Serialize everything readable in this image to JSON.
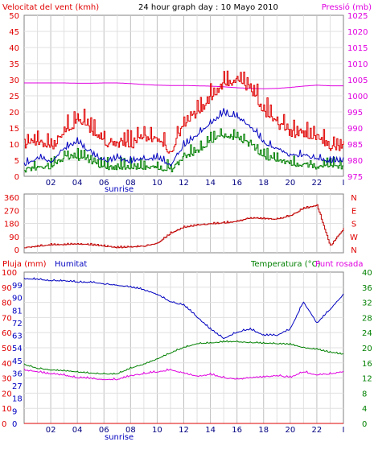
{
  "chart_data": [
    {
      "type": "line",
      "title": "24 hour graph day : 10 Mayo 2010",
      "ylabel_left": "Velocitat del vent (kmh)",
      "ylabel_right": "Pressió (mb)",
      "x_ticks": [
        "02",
        "04",
        "06",
        "08",
        "10",
        "12",
        "14",
        "16",
        "18",
        "20",
        "22",
        "I"
      ],
      "x_annotation": "sunrise",
      "ylim_left": [
        0,
        50
      ],
      "ylim_right": [
        975,
        1025
      ],
      "y_ticks_left": [
        "0",
        "5",
        "10",
        "15",
        "20",
        "25",
        "30",
        "35",
        "40",
        "45",
        "50"
      ],
      "y_ticks_right": [
        "975",
        "980",
        "985",
        "990",
        "995",
        "1000",
        "1005",
        "1010",
        "1015",
        "1020",
        "1025"
      ],
      "grid": true,
      "colors": {
        "gust": "#e00000",
        "avg": "#0000c0",
        "min": "#008000",
        "pressure": "#e000e0"
      },
      "x_hours": [
        0,
        1,
        2,
        3,
        4,
        5,
        6,
        7,
        8,
        9,
        10,
        11,
        12,
        13,
        14,
        15,
        16,
        17,
        18,
        19,
        20,
        21,
        22,
        23,
        24
      ],
      "series": [
        {
          "key": "gust",
          "values": [
            8,
            10,
            7,
            12,
            16,
            13,
            9,
            9,
            8,
            11,
            10,
            6,
            15,
            18,
            23,
            27,
            28,
            26,
            19,
            15,
            12,
            12,
            11,
            8,
            8
          ]
        },
        {
          "key": "avg",
          "values": [
            3,
            5,
            4,
            8,
            10,
            7,
            4,
            5,
            4,
            5,
            5,
            3,
            9,
            12,
            16,
            19,
            18,
            15,
            10,
            8,
            6,
            6,
            5,
            4,
            4
          ]
        },
        {
          "key": "min",
          "values": [
            1,
            2,
            2,
            5,
            5,
            4,
            2,
            2,
            2,
            2,
            2,
            1,
            5,
            7,
            10,
            12,
            11,
            9,
            5,
            4,
            3,
            3,
            2,
            2,
            2
          ]
        },
        {
          "key": "pressure",
          "values": [
            1004,
            1004,
            1004,
            1004,
            1003.9,
            1003.9,
            1004,
            1004,
            1003.8,
            1003.5,
            1003.3,
            1003.2,
            1003.2,
            1003.1,
            1003,
            1002.8,
            1002.5,
            1002.3,
            1002.2,
            1002.3,
            1002.6,
            1003,
            1003.3,
            1003.1,
            1003.1
          ]
        }
      ]
    },
    {
      "type": "line",
      "ylabel_right_letters": [
        "N",
        "W",
        "S",
        "E",
        "N"
      ],
      "ylim": [
        0,
        360
      ],
      "y_ticks_left": [
        "0",
        "90",
        "180",
        "270",
        "360"
      ],
      "color": "#c00000",
      "x_hours": [
        0,
        1,
        2,
        3,
        4,
        5,
        6,
        7,
        8,
        9,
        10,
        11,
        12,
        13,
        14,
        15,
        16,
        17,
        18,
        19,
        20,
        21,
        22,
        23,
        24
      ],
      "series": [
        {
          "key": "wind_dir",
          "values": [
            10,
            20,
            30,
            30,
            35,
            30,
            20,
            10,
            15,
            20,
            40,
            110,
            150,
            165,
            175,
            180,
            190,
            215,
            210,
            205,
            230,
            280,
            300,
            20,
            140
          ]
        }
      ]
    },
    {
      "type": "line",
      "ylabel_left": "Pluja (mm)",
      "label_humidity": "Humitat",
      "ylabel_right": "Temperatura (°C)",
      "label_dew": "Punt rosada",
      "x_ticks": [
        "02",
        "04",
        "06",
        "08",
        "10",
        "12",
        "14",
        "16",
        "18",
        "20",
        "22",
        "I"
      ],
      "x_annotation": "sunrise",
      "ylim_left": [
        0,
        100
      ],
      "ylim_right": [
        0,
        40
      ],
      "y_ticks_left_rain": [
        "0",
        "10",
        "20",
        "30",
        "40",
        "50",
        "60",
        "70",
        "80",
        "90",
        "100"
      ],
      "y_ticks_left_hum": [
        "0",
        "9",
        "18",
        "27",
        "36",
        "45",
        "54",
        "63",
        "72",
        "81",
        "90",
        "99"
      ],
      "y_ticks_right": [
        "0",
        "4",
        "8",
        "12",
        "16",
        "20",
        "24",
        "28",
        "32",
        "36",
        "40"
      ],
      "colors": {
        "rain": "#e00000",
        "humidity": "#0000c0",
        "temperature": "#008000",
        "dew": "#e000e0"
      },
      "x_hours": [
        0,
        1,
        2,
        3,
        4,
        5,
        6,
        7,
        8,
        9,
        10,
        11,
        12,
        13,
        14,
        15,
        16,
        17,
        18,
        19,
        20,
        21,
        22,
        23,
        24
      ],
      "series": [
        {
          "key": "humidity",
          "values": [
            95,
            95,
            94,
            94,
            93,
            93,
            92,
            91,
            90,
            88,
            85,
            80,
            78,
            70,
            62,
            56,
            60,
            62,
            58,
            58,
            62,
            80,
            66,
            75,
            85
          ]
        },
        {
          "key": "temperature",
          "values": [
            15.5,
            14.5,
            14,
            13.8,
            13.5,
            13.2,
            13,
            13,
            14.5,
            15.5,
            17,
            18.5,
            20,
            21,
            21.2,
            21.5,
            21.5,
            21.3,
            21.1,
            21,
            20.8,
            20,
            19.5,
            18.7,
            18.2
          ]
        },
        {
          "key": "dew",
          "values": [
            14,
            13.5,
            13,
            12.6,
            12,
            11.8,
            11.5,
            11.5,
            12.5,
            13,
            13.5,
            14,
            13.2,
            12.3,
            12.8,
            12,
            11.5,
            12,
            12.2,
            12.5,
            12,
            13.5,
            12.7,
            13,
            13.5
          ]
        },
        {
          "key": "rain",
          "values": [
            0,
            0,
            0,
            0,
            0,
            0,
            0,
            0,
            0,
            0,
            0,
            0,
            0,
            0,
            0,
            0,
            0,
            0,
            0,
            0,
            0,
            0,
            0,
            0,
            0
          ]
        }
      ]
    }
  ]
}
